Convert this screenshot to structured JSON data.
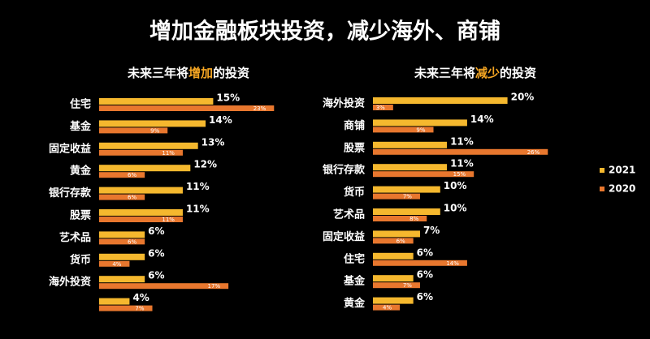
{
  "title": "增加金融板块投资，减少海外、商铺",
  "chart_data": [
    {
      "type": "hbar",
      "subtitle": [
        {
          "text": "未来三年将",
          "color": "#ffffff"
        },
        {
          "text": "增加",
          "color": "#f5a623"
        },
        {
          "text": "的投资",
          "color": "#ffffff"
        }
      ],
      "categories": [
        "住宅",
        "基金",
        "固定收益",
        "黄金",
        "银行存款",
        "股票",
        "艺术品",
        "货币",
        "海外投资",
        null
      ],
      "series": [
        {
          "color": "#f5b82e",
          "values": [
            15,
            14,
            13,
            12,
            11,
            11,
            6,
            6,
            6,
            4
          ],
          "value_labels": [
            "15%",
            "14%",
            "13%",
            "12%",
            "11%",
            "11%",
            "6%",
            "6%",
            "6%",
            "4%"
          ]
        },
        {
          "color": "#e8772e",
          "values": [
            23,
            9,
            11,
            6,
            6,
            11,
            6,
            4,
            17,
            7
          ],
          "value_labels": [
            "23%",
            "9%",
            "11%",
            "6%",
            "6%",
            "11%",
            "6%",
            "4%",
            "17%",
            "7%"
          ]
        }
      ],
      "xlim": [
        0,
        25
      ]
    },
    {
      "type": "hbar",
      "subtitle": [
        {
          "text": "未来三年将",
          "color": "#ffffff"
        },
        {
          "text": "减少",
          "color": "#f5a623"
        },
        {
          "text": "的投资",
          "color": "#ffffff"
        }
      ],
      "categories": [
        "海外投资",
        "商铺",
        "股票",
        "银行存款",
        "货币",
        "艺术品",
        "固定收益",
        "住宅",
        "基金",
        "黄金"
      ],
      "series": [
        {
          "name": "2021",
          "color": "#f5b82e",
          "values": [
            20,
            14,
            11,
            11,
            10,
            10,
            7,
            6,
            6,
            6
          ],
          "value_labels": [
            "20%",
            "14%",
            "11%",
            "11%",
            "10%",
            "10%",
            "7%",
            "6%",
            "6%",
            "6%"
          ]
        },
        {
          "name": "2020",
          "color": "#e8772e",
          "values": [
            3,
            9,
            26,
            15,
            7,
            8,
            6,
            14,
            7,
            4
          ],
          "value_labels": [
            "3%",
            "9%",
            "26%",
            "15%",
            "7%",
            "8%",
            "6%",
            "14%",
            "7%",
            "4%"
          ]
        }
      ],
      "xlim": [
        0,
        25
      ],
      "legend": "right"
    }
  ]
}
